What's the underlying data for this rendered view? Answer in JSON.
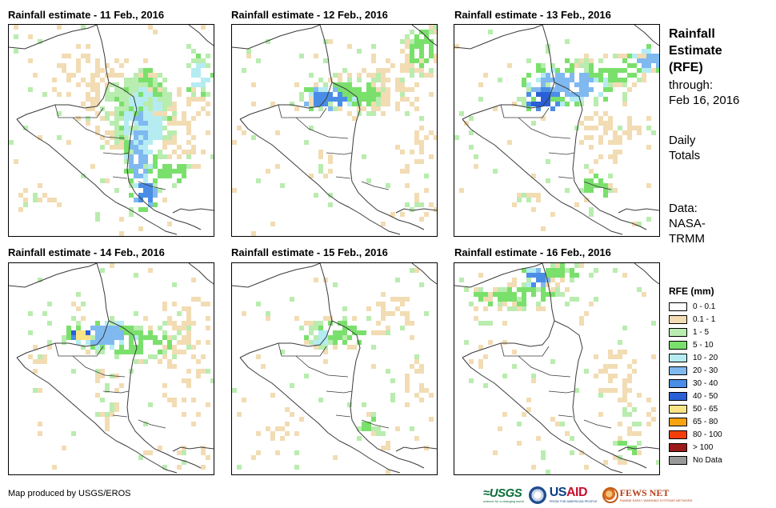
{
  "panels": [
    {
      "title": "Rainfall estimate - 11 Feb., 2016"
    },
    {
      "title": "Rainfall estimate - 12 Feb., 2016"
    },
    {
      "title": "Rainfall estimate - 13 Feb., 2016"
    },
    {
      "title": "Rainfall estimate - 14 Feb., 2016"
    },
    {
      "title": "Rainfall estimate - 15 Feb., 2016"
    },
    {
      "title": "Rainfall estimate - 16 Feb., 2016"
    }
  ],
  "side": {
    "title_lines": [
      "Rainfall",
      "Estimate",
      "(RFE)"
    ],
    "through": "through:",
    "date": "Feb 16, 2016",
    "daily": [
      "Daily",
      "Totals"
    ],
    "data": [
      "Data:",
      "NASA-",
      "TRMM"
    ]
  },
  "legend": {
    "title": "RFE (mm)",
    "items": [
      {
        "label": "0 - 0.1",
        "color": "#ffffff"
      },
      {
        "label": "0.1 - 1",
        "color": "#f2dcb3"
      },
      {
        "label": "1 - 5",
        "color": "#b9ecaf"
      },
      {
        "label": "5 - 10",
        "color": "#7ae06c"
      },
      {
        "label": "10 - 20",
        "color": "#b4ecf2"
      },
      {
        "label": "20 - 30",
        "color": "#7fb9f0"
      },
      {
        "label": "30 - 40",
        "color": "#4a8de6"
      },
      {
        "label": "40 - 50",
        "color": "#2a60d6"
      },
      {
        "label": "50 - 65",
        "color": "#fbe485"
      },
      {
        "label": "65 - 80",
        "color": "#f8a410"
      },
      {
        "label": "80 - 100",
        "color": "#f43e0a"
      },
      {
        "label": "> 100",
        "color": "#9b1a1a"
      },
      {
        "label": "No Data",
        "color": "#999999"
      }
    ]
  },
  "footer": {
    "credit": "Map produced by USGS/EROS"
  }
}
